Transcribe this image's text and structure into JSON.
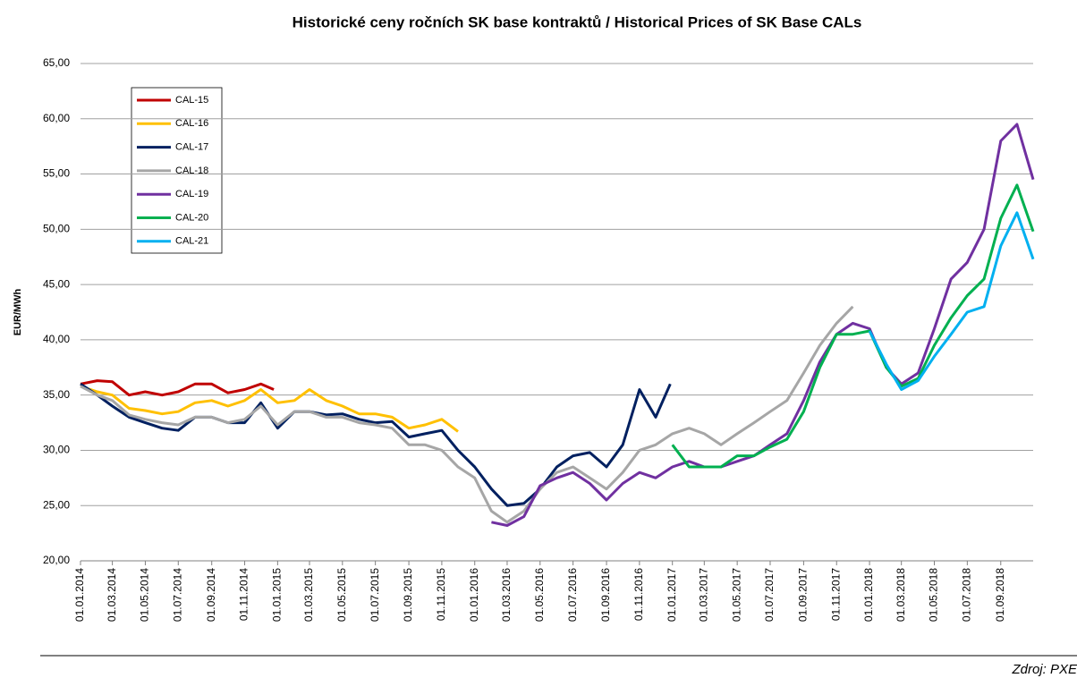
{
  "chart_data": {
    "type": "line",
    "title": "Historické ceny ročních SK base kontraktů / Historical Prices of SK Base CALs",
    "y_label": "EUR/MWh",
    "source": "Zdroj: PXE",
    "xlim": [
      "01.01.2014",
      "31.10.2018"
    ],
    "xticks": [
      "01.01.2014",
      "01.03.2014",
      "01.05.2014",
      "01.07.2014",
      "01.09.2014",
      "01.11.2014",
      "01.01.2015",
      "01.03.2015",
      "01.05.2015",
      "01.07.2015",
      "01.09.2015",
      "01.11.2015",
      "01.01.2016",
      "01.03.2016",
      "01.05.2016",
      "01.07.2016",
      "01.09.2016",
      "01.11.2016",
      "01.01.2017",
      "01.03.2017",
      "01.05.2017",
      "01.07.2017",
      "01.09.2017",
      "01.11.2017",
      "01.01.2018",
      "01.03.2018",
      "01.05.2018",
      "01.07.2018",
      "01.09.2018"
    ],
    "ylim": [
      20,
      65
    ],
    "yticks": [
      {
        "value": 20,
        "label": "20,00"
      },
      {
        "value": 25,
        "label": "25,00"
      },
      {
        "value": 30,
        "label": "30,00"
      },
      {
        "value": 35,
        "label": "35,00"
      },
      {
        "value": 40,
        "label": "40,00"
      },
      {
        "value": 45,
        "label": "45,00"
      },
      {
        "value": 50,
        "label": "50,00"
      },
      {
        "value": 55,
        "label": "55,00"
      },
      {
        "value": 60,
        "label": "60,00"
      },
      {
        "value": 65,
        "label": "65,00"
      }
    ],
    "grid": true,
    "legend": "upper left",
    "series": [
      {
        "name": "CAL-15",
        "color": "#c00000",
        "x": [
          "01.01.2014",
          "01.02.2014",
          "01.03.2014",
          "01.04.2014",
          "01.05.2014",
          "01.06.2014",
          "01.07.2014",
          "01.08.2014",
          "01.09.2014",
          "01.10.2014",
          "01.11.2014",
          "01.12.2014",
          "25.12.2014"
        ],
        "values": [
          36,
          36.3,
          36.2,
          35,
          35.3,
          35,
          35.3,
          36,
          36,
          35.2,
          35.5,
          36,
          35.5
        ]
      },
      {
        "name": "CAL-16",
        "color": "#ffc000",
        "x": [
          "01.01.2014",
          "01.02.2014",
          "01.03.2014",
          "01.04.2014",
          "01.05.2014",
          "01.06.2014",
          "01.07.2014",
          "01.08.2014",
          "01.09.2014",
          "01.10.2014",
          "01.11.2014",
          "01.12.2014",
          "01.01.2015",
          "01.02.2015",
          "01.03.2015",
          "01.04.2015",
          "01.05.2015",
          "01.06.2015",
          "01.07.2015",
          "01.08.2015",
          "01.09.2015",
          "01.10.2015",
          "01.11.2015",
          "01.12.2015"
        ],
        "values": [
          35.8,
          35.3,
          35,
          33.8,
          33.6,
          33.3,
          33.5,
          34.3,
          34.5,
          34,
          34.5,
          35.5,
          34.3,
          34.5,
          35.5,
          34.5,
          34,
          33.3,
          33.3,
          33,
          32,
          32.3,
          32.8,
          31.7
        ]
      },
      {
        "name": "CAL-17",
        "color": "#002060",
        "x": [
          "01.01.2014",
          "01.02.2014",
          "01.03.2014",
          "01.04.2014",
          "01.05.2014",
          "01.06.2014",
          "01.07.2014",
          "01.08.2014",
          "01.09.2014",
          "01.10.2014",
          "01.11.2014",
          "01.12.2014",
          "01.01.2015",
          "01.02.2015",
          "01.03.2015",
          "01.04.2015",
          "01.05.2015",
          "01.06.2015",
          "01.07.2015",
          "01.08.2015",
          "01.09.2015",
          "01.10.2015",
          "01.11.2015",
          "01.12.2015",
          "01.01.2016",
          "01.02.2016",
          "01.03.2016",
          "01.04.2016",
          "01.05.2016",
          "01.06.2016",
          "01.07.2016",
          "01.08.2016",
          "01.09.2016",
          "01.10.2016",
          "01.11.2016",
          "01.12.2016",
          "28.12.2016"
        ],
        "values": [
          36,
          35,
          34,
          33,
          32.5,
          32,
          31.8,
          33,
          33,
          32.5,
          32.5,
          34.3,
          32,
          33.5,
          33.5,
          33.2,
          33.3,
          32.8,
          32.5,
          32.6,
          31.2,
          31.5,
          31.8,
          30,
          28.5,
          26.5,
          25,
          25.2,
          26.5,
          28.5,
          29.5,
          29.8,
          28.5,
          30.5,
          35.5,
          33,
          36
        ]
      },
      {
        "name": "CAL-18",
        "color": "#a6a6a6",
        "x": [
          "01.01.2014",
          "01.02.2014",
          "01.03.2014",
          "01.04.2014",
          "01.05.2014",
          "01.06.2014",
          "01.07.2014",
          "01.08.2014",
          "01.09.2014",
          "01.10.2014",
          "01.11.2014",
          "01.12.2014",
          "01.01.2015",
          "01.02.2015",
          "01.03.2015",
          "01.04.2015",
          "01.05.2015",
          "01.06.2015",
          "01.07.2015",
          "01.08.2015",
          "01.09.2015",
          "01.10.2015",
          "01.11.2015",
          "01.12.2015",
          "01.01.2016",
          "01.02.2016",
          "01.03.2016",
          "01.04.2016",
          "01.05.2016",
          "01.06.2016",
          "01.07.2016",
          "01.08.2016",
          "01.09.2016",
          "01.10.2016",
          "01.11.2016",
          "01.12.2016",
          "01.01.2017",
          "01.02.2017",
          "01.03.2017",
          "01.04.2017",
          "01.05.2017",
          "01.06.2017",
          "01.07.2017",
          "01.08.2017",
          "01.09.2017",
          "01.10.2017",
          "01.11.2017",
          "01.12.2017"
        ],
        "values": [
          35.8,
          35,
          34.5,
          33.2,
          32.8,
          32.5,
          32.3,
          33,
          33,
          32.5,
          32.8,
          34,
          32.3,
          33.5,
          33.5,
          33,
          33,
          32.5,
          32.3,
          32,
          30.5,
          30.5,
          30,
          28.5,
          27.5,
          24.5,
          23.5,
          24.5,
          26.5,
          28,
          28.5,
          27.5,
          26.5,
          28,
          30,
          30.5,
          31.5,
          32,
          31.5,
          30.5,
          31.5,
          32.5,
          33.5,
          34.5,
          37,
          39.5,
          41.5,
          43
        ]
      },
      {
        "name": "CAL-19",
        "color": "#7030a0",
        "x": [
          "01.02.2016",
          "01.03.2016",
          "01.04.2016",
          "01.05.2016",
          "01.06.2016",
          "01.07.2016",
          "01.08.2016",
          "01.09.2016",
          "01.10.2016",
          "01.11.2016",
          "01.12.2016",
          "01.01.2017",
          "01.02.2017",
          "01.03.2017",
          "01.04.2017",
          "01.05.2017",
          "01.06.2017",
          "01.07.2017",
          "01.08.2017",
          "01.09.2017",
          "01.10.2017",
          "01.11.2017",
          "01.12.2017",
          "01.01.2018",
          "01.02.2018",
          "01.03.2018",
          "01.04.2018",
          "01.05.2018",
          "01.06.2018",
          "01.07.2018",
          "01.08.2018",
          "01.09.2018",
          "01.10.2018",
          "31.10.2018"
        ],
        "values": [
          23.5,
          23.2,
          24,
          26.8,
          27.5,
          28,
          27,
          25.5,
          27,
          28,
          27.5,
          28.5,
          29,
          28.5,
          28.5,
          29,
          29.5,
          30.5,
          31.5,
          34.5,
          38,
          40.5,
          41.5,
          41,
          37.5,
          36,
          37,
          41,
          45.5,
          47,
          50,
          58,
          59.5,
          54.5
        ]
      },
      {
        "name": "CAL-20",
        "color": "#00b050",
        "x": [
          "01.01.2017",
          "01.02.2017",
          "01.03.2017",
          "01.04.2017",
          "01.05.2017",
          "01.06.2017",
          "01.07.2017",
          "01.08.2017",
          "01.09.2017",
          "01.10.2017",
          "01.11.2017",
          "01.12.2017",
          "01.01.2018",
          "01.02.2018",
          "01.03.2018",
          "01.04.2018",
          "01.05.2018",
          "01.06.2018",
          "01.07.2018",
          "01.08.2018",
          "01.09.2018",
          "01.10.2018",
          "31.10.2018"
        ],
        "values": [
          30.5,
          28.5,
          28.5,
          28.5,
          29.5,
          29.5,
          30.3,
          31,
          33.5,
          37.5,
          40.5,
          40.5,
          40.8,
          37.5,
          35.8,
          36.5,
          39.5,
          42,
          44,
          45.5,
          51,
          54,
          49.8
        ]
      },
      {
        "name": "CAL-21",
        "color": "#00b0f0",
        "x": [
          "01.01.2018",
          "01.02.2018",
          "01.03.2018",
          "01.04.2018",
          "01.05.2018",
          "01.06.2018",
          "01.07.2018",
          "01.08.2018",
          "01.09.2018",
          "01.10.2018",
          "31.10.2018"
        ],
        "values": [
          40.8,
          37.8,
          35.5,
          36.3,
          38.5,
          40.5,
          42.5,
          43,
          48.5,
          51.5,
          47.3
        ]
      }
    ]
  }
}
